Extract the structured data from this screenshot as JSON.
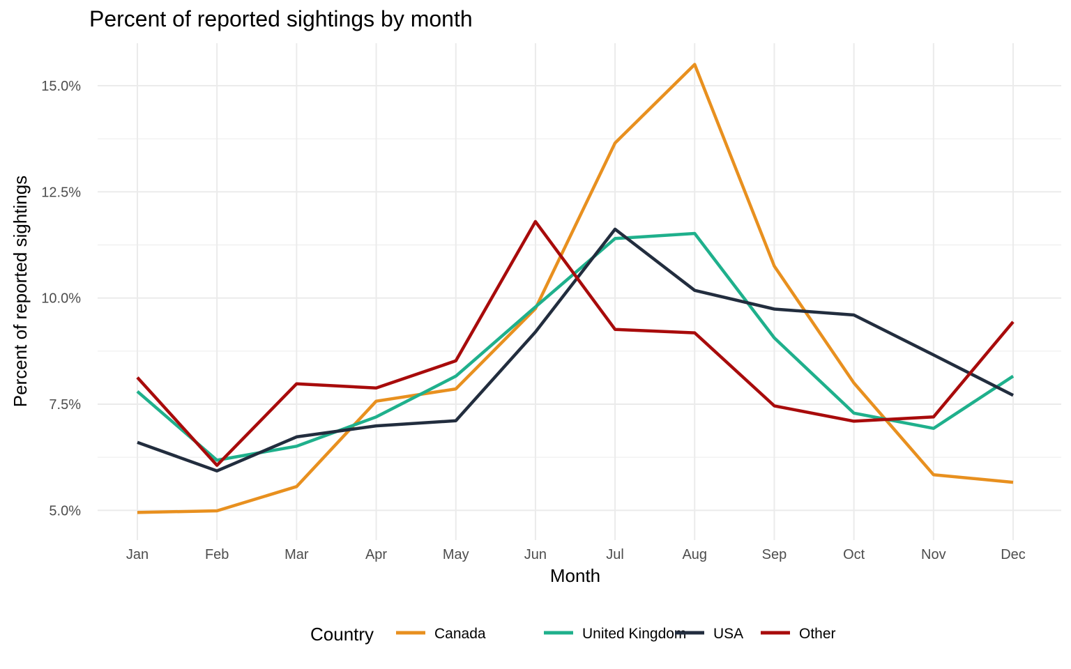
{
  "chart_data": {
    "type": "line",
    "title": "Percent of reported sightings by month",
    "xlabel": "Month",
    "ylabel": "Percent of reported sightings",
    "categories": [
      "Jan",
      "Feb",
      "Mar",
      "Apr",
      "May",
      "Jun",
      "Jul",
      "Aug",
      "Sep",
      "Oct",
      "Nov",
      "Dec"
    ],
    "ylim": [
      4.3,
      16.0
    ],
    "yticks": [
      5.0,
      7.5,
      10.0,
      12.5,
      15.0
    ],
    "ytick_labels": [
      "5.0%",
      "7.5%",
      "10.0%",
      "12.5%",
      "15.0%"
    ],
    "grid": true,
    "legend": {
      "title": "Country",
      "position": "bottom"
    },
    "series": [
      {
        "name": "Canada",
        "color": "#e8901f",
        "values": [
          4.95,
          4.99,
          5.56,
          7.57,
          7.86,
          9.75,
          13.65,
          15.5,
          10.75,
          8.0,
          5.84,
          5.66
        ]
      },
      {
        "name": "United Kingdom",
        "color": "#1fb08c",
        "values": [
          7.8,
          6.18,
          6.51,
          7.2,
          8.16,
          9.79,
          11.4,
          11.52,
          9.06,
          7.29,
          6.93,
          8.16
        ]
      },
      {
        "name": "USA",
        "color": "#222d3e",
        "values": [
          6.6,
          5.93,
          6.73,
          6.99,
          7.11,
          9.2,
          11.62,
          10.18,
          9.74,
          9.6,
          8.66,
          7.71
        ]
      },
      {
        "name": "Other",
        "color": "#a80b0b",
        "values": [
          8.13,
          6.06,
          7.98,
          7.88,
          8.52,
          11.8,
          9.26,
          9.18,
          7.46,
          7.1,
          7.2,
          9.44
        ]
      }
    ]
  }
}
